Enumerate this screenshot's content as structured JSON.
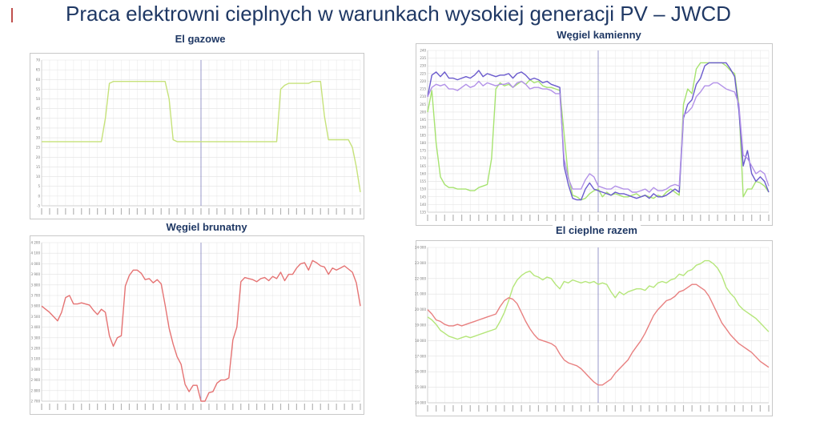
{
  "page": {
    "title": "Praca elektrowni cieplnych w warunkach wysokiej generacji PV – JWCD",
    "accent_color": "#c0504d",
    "title_color": "#1f3864"
  },
  "chart_data": [
    {
      "id": "gas",
      "type": "line",
      "title": "El gazowe",
      "ylim": [
        -5,
        70
      ],
      "yticks": [
        "70",
        "65",
        "60",
        "55",
        "50",
        "45",
        "40",
        "35",
        "30",
        "25",
        "20",
        "15",
        "10",
        "5",
        "0",
        "-5"
      ],
      "x_count": 81,
      "grid": true,
      "series": [
        {
          "color": "#c6e27a",
          "values": [
            28,
            28,
            28,
            28,
            28,
            28,
            28,
            28,
            28,
            28,
            28,
            28,
            28,
            28,
            28,
            28,
            40,
            58,
            59,
            59,
            59,
            59,
            59,
            59,
            59,
            59,
            59,
            59,
            59,
            59,
            59,
            59,
            50,
            29,
            28,
            28,
            28,
            28,
            28,
            28,
            28,
            28,
            28,
            28,
            28,
            28,
            28,
            28,
            28,
            28,
            28,
            28,
            28,
            28,
            28,
            28,
            28,
            28,
            28,
            28,
            55,
            57,
            58,
            58,
            58,
            58,
            58,
            58,
            59,
            59,
            59,
            41,
            29,
            29,
            29,
            29,
            29,
            29,
            25,
            15,
            2
          ]
        }
      ]
    },
    {
      "id": "hard_coal",
      "type": "line",
      "title": "Węgiel kamienny",
      "ylim": [
        135,
        240
      ],
      "yticks": [
        "240",
        "235",
        "230",
        "225",
        "220",
        "215",
        "210",
        "205",
        "200",
        "195",
        "190",
        "185",
        "180",
        "175",
        "170",
        "165",
        "160",
        "155",
        "150",
        "145",
        "140",
        "135"
      ],
      "x_count": 81,
      "grid": true,
      "series": [
        {
          "color": "#a6e36f",
          "values": [
            200,
            214,
            180,
            158,
            153,
            151,
            151,
            150,
            150,
            150,
            149,
            149,
            151,
            152,
            153,
            170,
            215,
            219,
            217,
            218,
            216,
            218,
            220,
            218,
            221,
            219,
            220,
            217,
            216,
            216,
            215,
            214,
            186,
            158,
            146,
            145,
            143,
            144,
            147,
            149,
            150,
            145,
            148,
            146,
            147,
            146,
            145,
            145,
            146,
            147,
            145,
            146,
            145,
            144,
            146,
            145,
            148,
            150,
            148,
            146,
            205,
            215,
            212,
            228,
            232,
            232,
            232,
            232,
            232,
            232,
            230,
            227,
            225,
            205,
            145,
            150,
            150,
            155,
            154,
            152,
            148
          ]
        },
        {
          "color": "#6a5acd",
          "values": [
            210,
            224,
            226,
            223,
            226,
            222,
            222,
            221,
            222,
            223,
            222,
            224,
            227,
            223,
            225,
            224,
            223,
            224,
            224,
            225,
            222,
            225,
            226,
            224,
            221,
            222,
            221,
            219,
            220,
            218,
            217,
            216,
            165,
            153,
            144,
            143,
            143,
            150,
            154,
            150,
            149,
            148,
            147,
            146,
            148,
            147,
            147,
            146,
            145,
            144,
            145,
            146,
            144,
            147,
            145,
            145,
            146,
            148,
            150,
            148,
            196,
            205,
            208,
            218,
            222,
            230,
            232,
            232,
            232,
            232,
            232,
            228,
            223,
            201,
            165,
            175,
            160,
            155,
            158,
            155,
            148
          ]
        },
        {
          "color": "#b291e8",
          "values": [
            210,
            216,
            218,
            217,
            218,
            215,
            215,
            214,
            216,
            218,
            216,
            217,
            220,
            217,
            219,
            218,
            217,
            218,
            218,
            219,
            216,
            219,
            220,
            218,
            215,
            216,
            216,
            215,
            215,
            214,
            212,
            212,
            170,
            157,
            150,
            150,
            150,
            156,
            160,
            158,
            152,
            151,
            150,
            150,
            152,
            151,
            150,
            150,
            148,
            148,
            149,
            150,
            148,
            151,
            149,
            149,
            150,
            152,
            153,
            152,
            198,
            200,
            203,
            210,
            213,
            217,
            217,
            219,
            219,
            217,
            215,
            214,
            213,
            205,
            172,
            170,
            165,
            160,
            162,
            160,
            152
          ]
        }
      ]
    },
    {
      "id": "lignite",
      "type": "line",
      "title": "Węgiel brunatny",
      "ylim": [
        2700,
        4200
      ],
      "yticks": [
        "4 200",
        "4 100",
        "4 000",
        "3 900",
        "3 800",
        "3 700",
        "3 600",
        "3 500",
        "3 400",
        "3 300",
        "3 200",
        "3 100",
        "3 000",
        "2 900",
        "2 800",
        "2 700"
      ],
      "x_count": 81,
      "grid": true,
      "series": [
        {
          "color": "#e57373",
          "values": [
            3600,
            3570,
            3540,
            3500,
            3460,
            3540,
            3680,
            3700,
            3620,
            3620,
            3630,
            3620,
            3610,
            3560,
            3520,
            3570,
            3540,
            3320,
            3220,
            3300,
            3320,
            3790,
            3890,
            3940,
            3940,
            3910,
            3850,
            3860,
            3820,
            3850,
            3810,
            3610,
            3390,
            3240,
            3120,
            3050,
            2860,
            2790,
            2850,
            2850,
            2700,
            2700,
            2780,
            2790,
            2870,
            2900,
            2900,
            2920,
            3280,
            3400,
            3830,
            3870,
            3860,
            3850,
            3830,
            3860,
            3870,
            3840,
            3880,
            3860,
            3920,
            3840,
            3900,
            3900,
            3960,
            4000,
            4010,
            3940,
            4030,
            4010,
            3980,
            3970,
            3900,
            3960,
            3940,
            3960,
            3980,
            3950,
            3920,
            3820,
            3600
          ]
        }
      ]
    },
    {
      "id": "heat_total",
      "type": "line",
      "title": "El cieplne razem",
      "ylim": [
        14000,
        24500
      ],
      "yticks": [
        "24 000",
        "23 000",
        "22 000",
        "21 000",
        "20 000",
        "19 000",
        "18 000",
        "17 000",
        "16 000",
        "15 000",
        "14 000"
      ],
      "x_count": 81,
      "grid": true,
      "series": [
        {
          "color": "#b5e67a",
          "values": [
            19800,
            19600,
            19300,
            18900,
            18700,
            18500,
            18400,
            18300,
            18400,
            18500,
            18400,
            18500,
            18600,
            18700,
            18800,
            18900,
            19000,
            19500,
            20100,
            20900,
            21800,
            22300,
            22600,
            22800,
            22900,
            22600,
            22500,
            22300,
            22500,
            22400,
            22000,
            21700,
            22200,
            22100,
            22300,
            22200,
            22100,
            22200,
            22100,
            22200,
            22000,
            22100,
            22000,
            21500,
            21100,
            21500,
            21300,
            21500,
            21600,
            21700,
            21700,
            21600,
            21900,
            21800,
            22100,
            22200,
            22100,
            22300,
            22400,
            22700,
            22600,
            22900,
            23000,
            23300,
            23400,
            23600,
            23600,
            23400,
            23100,
            22600,
            21800,
            21400,
            21100,
            20600,
            20300,
            20100,
            19900,
            19700,
            19400,
            19100,
            18800
          ]
        },
        {
          "color": "#e88080",
          "values": [
            20300,
            20000,
            19600,
            19500,
            19300,
            19200,
            19200,
            19300,
            19200,
            19300,
            19400,
            19500,
            19600,
            19700,
            19800,
            19900,
            20000,
            20500,
            20900,
            21100,
            21000,
            20700,
            20100,
            19500,
            19000,
            18600,
            18300,
            18200,
            18100,
            18000,
            17800,
            17300,
            16900,
            16700,
            16600,
            16500,
            16300,
            16000,
            15700,
            15400,
            15200,
            15200,
            15400,
            15600,
            16000,
            16300,
            16600,
            16900,
            17400,
            17800,
            18200,
            18700,
            19300,
            19900,
            20300,
            20600,
            20900,
            21000,
            21200,
            21500,
            21600,
            21800,
            22000,
            22000,
            21800,
            21600,
            21200,
            20600,
            20000,
            19400,
            19000,
            18600,
            18300,
            18000,
            17800,
            17600,
            17400,
            17100,
            16800,
            16600,
            16400
          ]
        }
      ]
    }
  ]
}
